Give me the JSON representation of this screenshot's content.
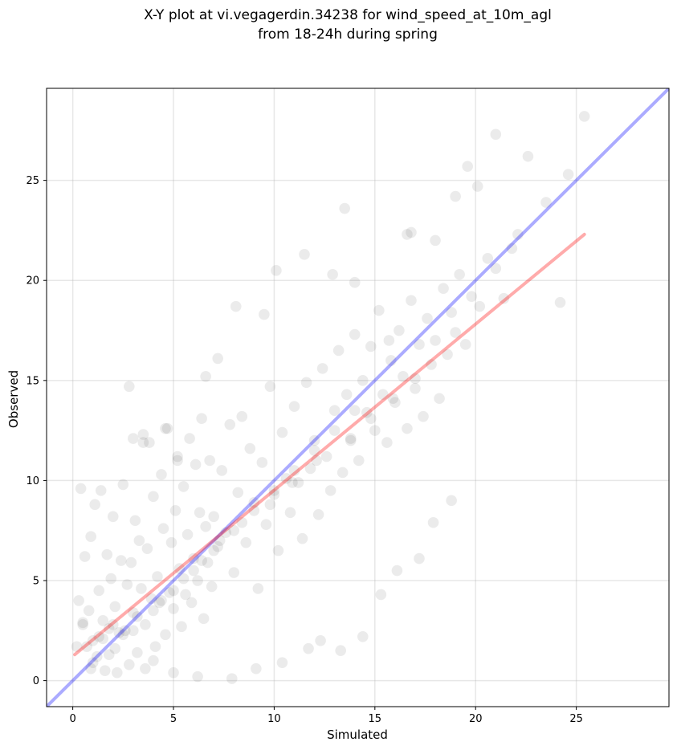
{
  "chart_data": {
    "type": "scatter",
    "title_lines": [
      "X-Y plot at vi.vegagerdin.34238 for wind_speed_at_10m_agl",
      "from 18-24h during spring"
    ],
    "xlabel": "Simulated",
    "ylabel": "Observed",
    "xlim": [
      -1.3,
      29.6
    ],
    "ylim": [
      -1.3,
      29.6
    ],
    "xticks": [
      0,
      5,
      10,
      15,
      20,
      25
    ],
    "yticks": [
      0,
      5,
      10,
      15,
      20,
      25
    ],
    "grid": true,
    "point_color": "#000000",
    "point_opacity": 0.08,
    "series": [
      {
        "kind": "points",
        "sample_note": "dense cloud; representative sample",
        "x": [
          0.2,
          0.3,
          0.5,
          0.6,
          0.8,
          0.9,
          1.0,
          1.1,
          1.2,
          1.3,
          1.4,
          1.5,
          1.6,
          1.7,
          1.8,
          1.9,
          2.0,
          2.1,
          2.2,
          2.3,
          2.4,
          2.5,
          2.6,
          2.7,
          2.8,
          2.9,
          3.0,
          3.1,
          3.2,
          3.3,
          3.4,
          3.5,
          3.6,
          3.7,
          3.8,
          3.9,
          4.0,
          4.1,
          4.2,
          4.3,
          4.4,
          4.5,
          4.6,
          4.7,
          4.8,
          4.9,
          5.0,
          5.1,
          5.2,
          5.3,
          5.4,
          5.5,
          5.6,
          5.7,
          5.8,
          5.9,
          6.0,
          6.1,
          6.2,
          6.3,
          6.4,
          6.5,
          6.6,
          6.7,
          6.8,
          6.9,
          7.0,
          7.2,
          7.4,
          7.6,
          7.8,
          8.0,
          8.2,
          8.4,
          8.6,
          8.8,
          9.0,
          9.2,
          9.4,
          9.6,
          9.8,
          10.0,
          10.2,
          10.4,
          10.6,
          10.8,
          11.0,
          11.2,
          11.4,
          11.6,
          11.8,
          12.0,
          12.2,
          12.4,
          12.6,
          12.8,
          13.0,
          13.2,
          13.4,
          13.6,
          13.8,
          14.0,
          14.2,
          14.4,
          14.6,
          14.8,
          15.0,
          15.2,
          15.4,
          15.6,
          15.8,
          16.0,
          16.2,
          16.4,
          16.6,
          16.8,
          17.0,
          17.2,
          17.4,
          17.6,
          17.8,
          18.0,
          18.2,
          18.4,
          18.6,
          18.8,
          19.0,
          19.2,
          19.5,
          19.8,
          20.2,
          20.6,
          21.0,
          21.4,
          21.8,
          22.1,
          22.6,
          23.5,
          24.2,
          24.6,
          25.4,
          2.8,
          3.0,
          3.5,
          4.6,
          5.2,
          6.6,
          7.2,
          8.1,
          9.5,
          10.1,
          11.5,
          12.9,
          13.5,
          14.0,
          15.7,
          16.6,
          16.8,
          18.0,
          19.6,
          21.0,
          20.1,
          19.0,
          1.3,
          2.1,
          4.0,
          0.5,
          0.7,
          1.0,
          3.6,
          5.0,
          6.2,
          7.9,
          9.1,
          10.4,
          11.7,
          12.3,
          13.3,
          14.4,
          15.3,
          16.1,
          17.2,
          17.9,
          18.8,
          0.4,
          0.9,
          1.8,
          2.5,
          3.2,
          4.4,
          5.5,
          6.4,
          7.3,
          8.4,
          9.8,
          10.9,
          12.1,
          13.8,
          14.8,
          15.9,
          17.0,
          6.0,
          7.0,
          8.0,
          9.0,
          10.0,
          11.0,
          12.0,
          13.0,
          14.0,
          3.0,
          4.0,
          5.0,
          2.0,
          1.5
        ],
        "y": [
          1.7,
          4.0,
          2.9,
          6.2,
          3.5,
          7.2,
          2.0,
          8.8,
          1.2,
          4.5,
          9.5,
          3.0,
          0.5,
          6.3,
          2.6,
          5.1,
          8.2,
          3.7,
          0.4,
          2.4,
          6.0,
          9.8,
          2.5,
          4.8,
          0.8,
          5.9,
          3.4,
          8.0,
          1.4,
          7.0,
          4.6,
          12.3,
          2.8,
          6.6,
          11.9,
          4.1,
          9.2,
          1.7,
          5.2,
          3.9,
          10.3,
          7.6,
          2.3,
          12.6,
          4.4,
          6.9,
          3.6,
          8.5,
          11.2,
          5.6,
          2.7,
          9.7,
          4.3,
          7.3,
          12.1,
          3.9,
          6.1,
          10.8,
          5.0,
          8.4,
          13.1,
          3.1,
          7.7,
          5.9,
          11.0,
          4.7,
          8.2,
          6.7,
          10.5,
          7.4,
          12.8,
          5.4,
          9.4,
          13.2,
          6.9,
          11.6,
          8.9,
          4.6,
          10.9,
          7.8,
          14.7,
          9.3,
          6.5,
          12.4,
          10.1,
          8.4,
          13.7,
          9.9,
          7.1,
          14.9,
          10.6,
          12.0,
          8.3,
          15.6,
          11.2,
          9.5,
          13.5,
          16.5,
          10.4,
          14.3,
          12.1,
          17.3,
          11.0,
          15.0,
          13.4,
          16.7,
          12.5,
          18.5,
          14.3,
          11.9,
          16.0,
          13.9,
          17.5,
          15.2,
          12.6,
          19.0,
          14.6,
          16.8,
          13.2,
          18.1,
          15.8,
          17.0,
          14.1,
          19.6,
          16.3,
          18.4,
          17.4,
          20.3,
          16.8,
          19.2,
          18.7,
          21.1,
          20.6,
          19.1,
          21.6,
          22.3,
          26.2,
          23.9,
          18.9,
          25.3,
          28.2,
          14.7,
          12.1,
          11.9,
          12.6,
          11.0,
          15.2,
          16.1,
          18.7,
          18.3,
          20.5,
          21.3,
          20.3,
          23.6,
          19.9,
          17.0,
          22.3,
          22.4,
          22.0,
          25.7,
          27.3,
          24.7,
          24.2,
          2.2,
          1.6,
          1.0,
          2.8,
          1.7,
          0.9,
          0.6,
          0.4,
          0.2,
          0.1,
          0.6,
          0.9,
          1.6,
          2.0,
          1.5,
          2.2,
          4.3,
          5.5,
          6.1,
          7.9,
          9.0,
          9.6,
          0.6,
          1.3,
          2.3,
          3.2,
          4.0,
          5.1,
          6.0,
          7.0,
          7.9,
          8.8,
          9.9,
          11.0,
          12.0,
          13.1,
          14.1,
          15.1,
          5.5,
          6.5,
          7.5,
          8.5,
          9.5,
          10.5,
          11.5,
          12.5,
          13.5,
          2.5,
          3.5,
          4.5,
          2.8,
          2.1
        ]
      },
      {
        "kind": "line",
        "name": "",
        "color": "#0000ff",
        "opacity": 0.33,
        "x": [
          -1.3,
          29.6
        ],
        "y": [
          -1.3,
          29.6
        ]
      },
      {
        "kind": "line",
        "name": "",
        "color": "#ff0000",
        "opacity": 0.33,
        "x": [
          0.1,
          25.4
        ],
        "y": [
          1.3,
          22.3
        ]
      }
    ]
  }
}
